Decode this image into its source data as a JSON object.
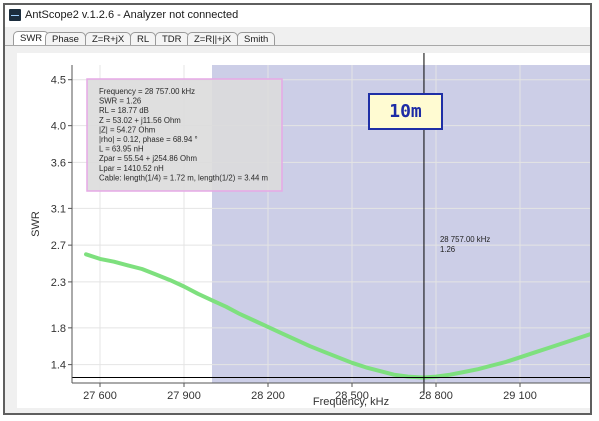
{
  "window": {
    "title": "AntScope2 v.1.2.6 - Analyzer not connected"
  },
  "tabs": [
    {
      "label": "SWR",
      "active": true
    },
    {
      "label": "Phase",
      "active": false
    },
    {
      "label": "Z=R+jX",
      "active": false
    },
    {
      "label": "RL",
      "active": false
    },
    {
      "label": "TDR",
      "active": false
    },
    {
      "label": "Z=R||+jX",
      "active": false
    },
    {
      "label": "Smith",
      "active": false
    }
  ],
  "info_panel": {
    "lines": [
      "Frequency = 28 757.00 kHz",
      "SWR = 1.26",
      "RL = 18.77 dB",
      "Z = 53.02 + j11.56 Ohm",
      "|Z| = 54.27 Ohm",
      "|rho| = 0.12, phase = 68.94 °",
      "L = 63.95 nH",
      "Zpar = 55.54 + j254.86 Ohm",
      "Lpar = 1410.52 nH",
      "Cable: length(1/4) = 1.72 m, length(1/2) = 3.44 m"
    ]
  },
  "band_label": "10m",
  "cursor": {
    "frequency_text": "28 757.00 kHz",
    "swr_text": "1.26",
    "frequency_khz": 28757,
    "swr": 1.26
  },
  "colors": {
    "band_fill": "#c9cbe6",
    "curve": "#7ee07e",
    "cursor_line": "#000000",
    "info_bg": "#dcdcdc",
    "info_border": "#e6a8e6"
  },
  "chart_data": {
    "type": "line",
    "xlabel": "Frequency, kHz",
    "ylabel": "SWR",
    "xlim": [
      27500,
      29350
    ],
    "ylim": [
      1.2,
      4.66
    ],
    "x_ticks": [
      27600,
      27900,
      28200,
      28500,
      28800,
      29100
    ],
    "x_tick_labels": [
      "27 600",
      "27 900",
      "28 200",
      "28 500",
      "28 800",
      "29 100"
    ],
    "y_ticks": [
      1.4,
      1.8,
      2.3,
      2.7,
      3.1,
      3.6,
      4.0,
      4.5
    ],
    "y_tick_labels": [
      "1.4",
      "1.8",
      "2.3",
      "2.7",
      "3.1",
      "3.6",
      "4.0",
      "4.5"
    ],
    "band_range_khz": [
      28000,
      29350
    ],
    "series": [
      {
        "x": [
          27550,
          27600,
          27650,
          27700,
          27750,
          27800,
          27850,
          27900,
          27950,
          28000,
          28050,
          28100,
          28150,
          28200,
          28250,
          28300,
          28350,
          28400,
          28450,
          28500,
          28550,
          28600,
          28650,
          28700,
          28750,
          28757,
          28800,
          28850,
          28900,
          28950,
          29000,
          29050,
          29100,
          29150,
          29200,
          29250,
          29300,
          29350
        ],
        "values": [
          2.6,
          2.55,
          2.52,
          2.48,
          2.44,
          2.38,
          2.32,
          2.25,
          2.17,
          2.1,
          2.03,
          1.95,
          1.88,
          1.81,
          1.74,
          1.67,
          1.6,
          1.54,
          1.48,
          1.42,
          1.37,
          1.33,
          1.29,
          1.27,
          1.26,
          1.26,
          1.27,
          1.29,
          1.32,
          1.35,
          1.39,
          1.43,
          1.48,
          1.53,
          1.58,
          1.63,
          1.68,
          1.73
        ]
      }
    ]
  }
}
